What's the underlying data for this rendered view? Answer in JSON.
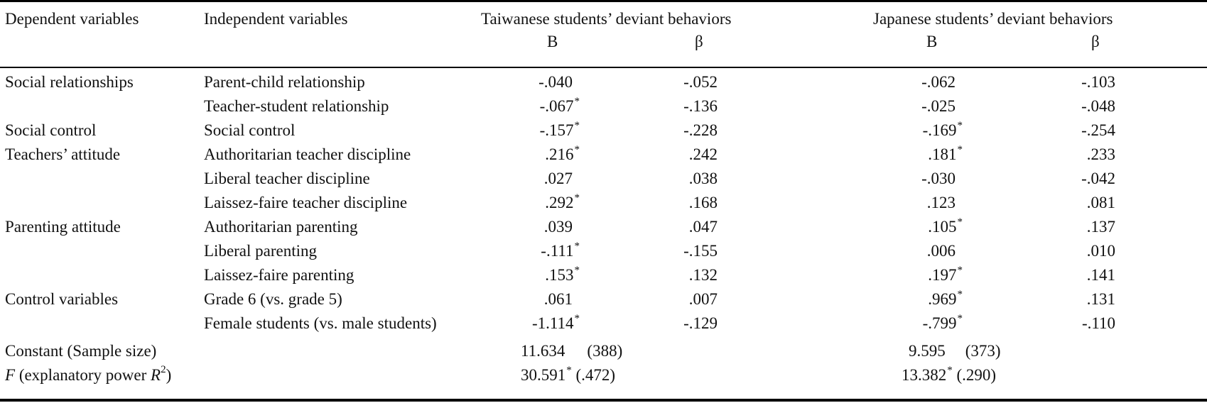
{
  "header": {
    "dependent_variables": "Dependent variables",
    "independent_variables": "Independent variables",
    "taiwanese_group": "Taiwanese students’ deviant behaviors",
    "japanese_group": "Japanese students’ deviant behaviors",
    "col_b": "B",
    "col_beta": "β"
  },
  "rows": [
    {
      "dep": "Social relationships",
      "ind": "Parent-child relationship",
      "tw_b": "-.040",
      "tw_b_star": "",
      "tw_beta": "-.052",
      "jp_b": "-.062",
      "jp_b_star": "",
      "jp_beta": "-.103"
    },
    {
      "dep": "",
      "ind": "Teacher-student relationship",
      "tw_b": "-.067",
      "tw_b_star": "*",
      "tw_beta": "-.136",
      "jp_b": "-.025",
      "jp_b_star": "",
      "jp_beta": "-.048"
    },
    {
      "dep": "Social control",
      "ind": "Social control",
      "tw_b": "-.157",
      "tw_b_star": "*",
      "tw_beta": "-.228",
      "jp_b": "-.169",
      "jp_b_star": "*",
      "jp_beta": "-.254"
    },
    {
      "dep": "Teachers’ attitude",
      "ind": "Authoritarian teacher discipline",
      "tw_b": ".216",
      "tw_b_star": "*",
      "tw_beta": ".242",
      "jp_b": ".181",
      "jp_b_star": "*",
      "jp_beta": ".233"
    },
    {
      "dep": "",
      "ind": "Liberal teacher discipline",
      "tw_b": ".027",
      "tw_b_star": "",
      "tw_beta": ".038",
      "jp_b": "-.030",
      "jp_b_star": "",
      "jp_beta": "-.042"
    },
    {
      "dep": "",
      "ind": "Laissez-faire teacher discipline",
      "tw_b": ".292",
      "tw_b_star": "*",
      "tw_beta": ".168",
      "jp_b": ".123",
      "jp_b_star": "",
      "jp_beta": ".081"
    },
    {
      "dep": "Parenting attitude",
      "ind": "Authoritarian parenting",
      "tw_b": ".039",
      "tw_b_star": "",
      "tw_beta": ".047",
      "jp_b": ".105",
      "jp_b_star": "*",
      "jp_beta": ".137"
    },
    {
      "dep": "",
      "ind": "Liberal parenting",
      "tw_b": "-.111",
      "tw_b_star": "*",
      "tw_beta": "-.155",
      "jp_b": ".006",
      "jp_b_star": "",
      "jp_beta": ".010"
    },
    {
      "dep": "",
      "ind": "Laissez-faire parenting",
      "tw_b": ".153",
      "tw_b_star": "*",
      "tw_beta": ".132",
      "jp_b": ".197",
      "jp_b_star": "*",
      "jp_beta": ".141"
    },
    {
      "dep": "Control variables",
      "ind": "Grade 6 (vs. grade 5)",
      "tw_b": ".061",
      "tw_b_star": "",
      "tw_beta": ".007",
      "jp_b": ".969",
      "jp_b_star": "*",
      "jp_beta": ".131"
    },
    {
      "dep": "",
      "ind": "Female students (vs. male students)",
      "tw_b": "-1.114",
      "tw_b_star": "*",
      "tw_beta": "-.129",
      "jp_b": "-.799",
      "jp_b_star": "*",
      "jp_beta": "-.110"
    }
  ],
  "constant": {
    "label": "Constant (Sample size)",
    "tw_value": "11.634",
    "tw_n": "(388)",
    "jp_value": "9.595",
    "jp_n": "(373)"
  },
  "f_row": {
    "label_f": "F",
    "label_mid": " (explanatory power ",
    "label_r": "R",
    "label_sup": "2",
    "label_end": ")",
    "tw_value": "30.591",
    "tw_star": "*",
    "tw_r2": "(.472)",
    "jp_value": "13.382",
    "jp_star": "*",
    "jp_r2": "(.290)"
  }
}
